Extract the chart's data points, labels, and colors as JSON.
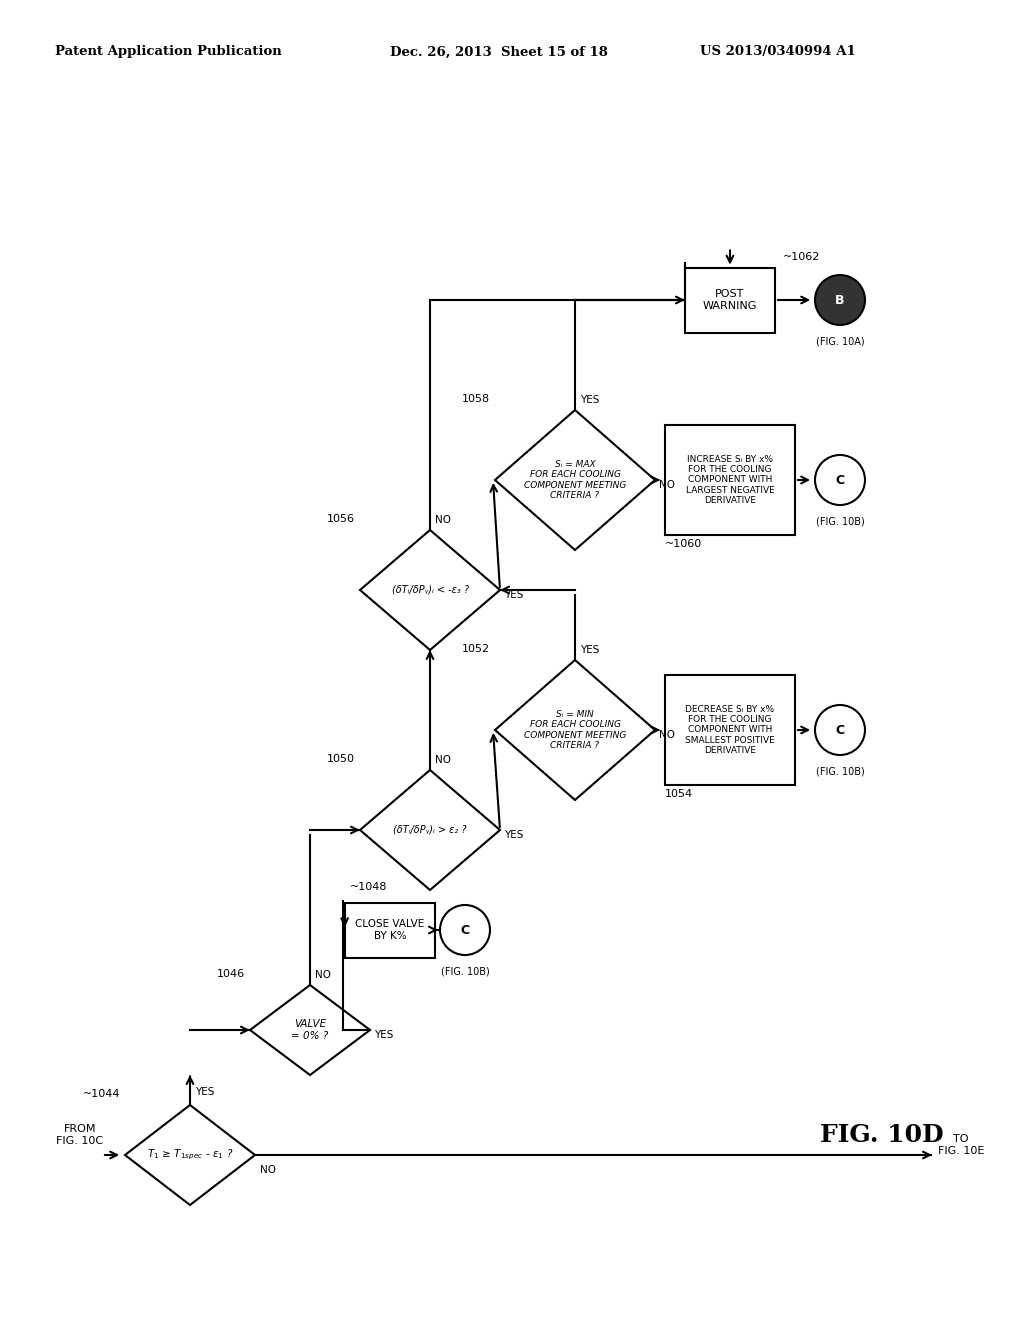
{
  "bg_color": "#ffffff",
  "header_left": "Patent Application Publication",
  "header_mid": "Dec. 26, 2013  Sheet 15 of 18",
  "header_right": "US 2013/0340994 A1",
  "fig_label": "FIG. 10D"
}
